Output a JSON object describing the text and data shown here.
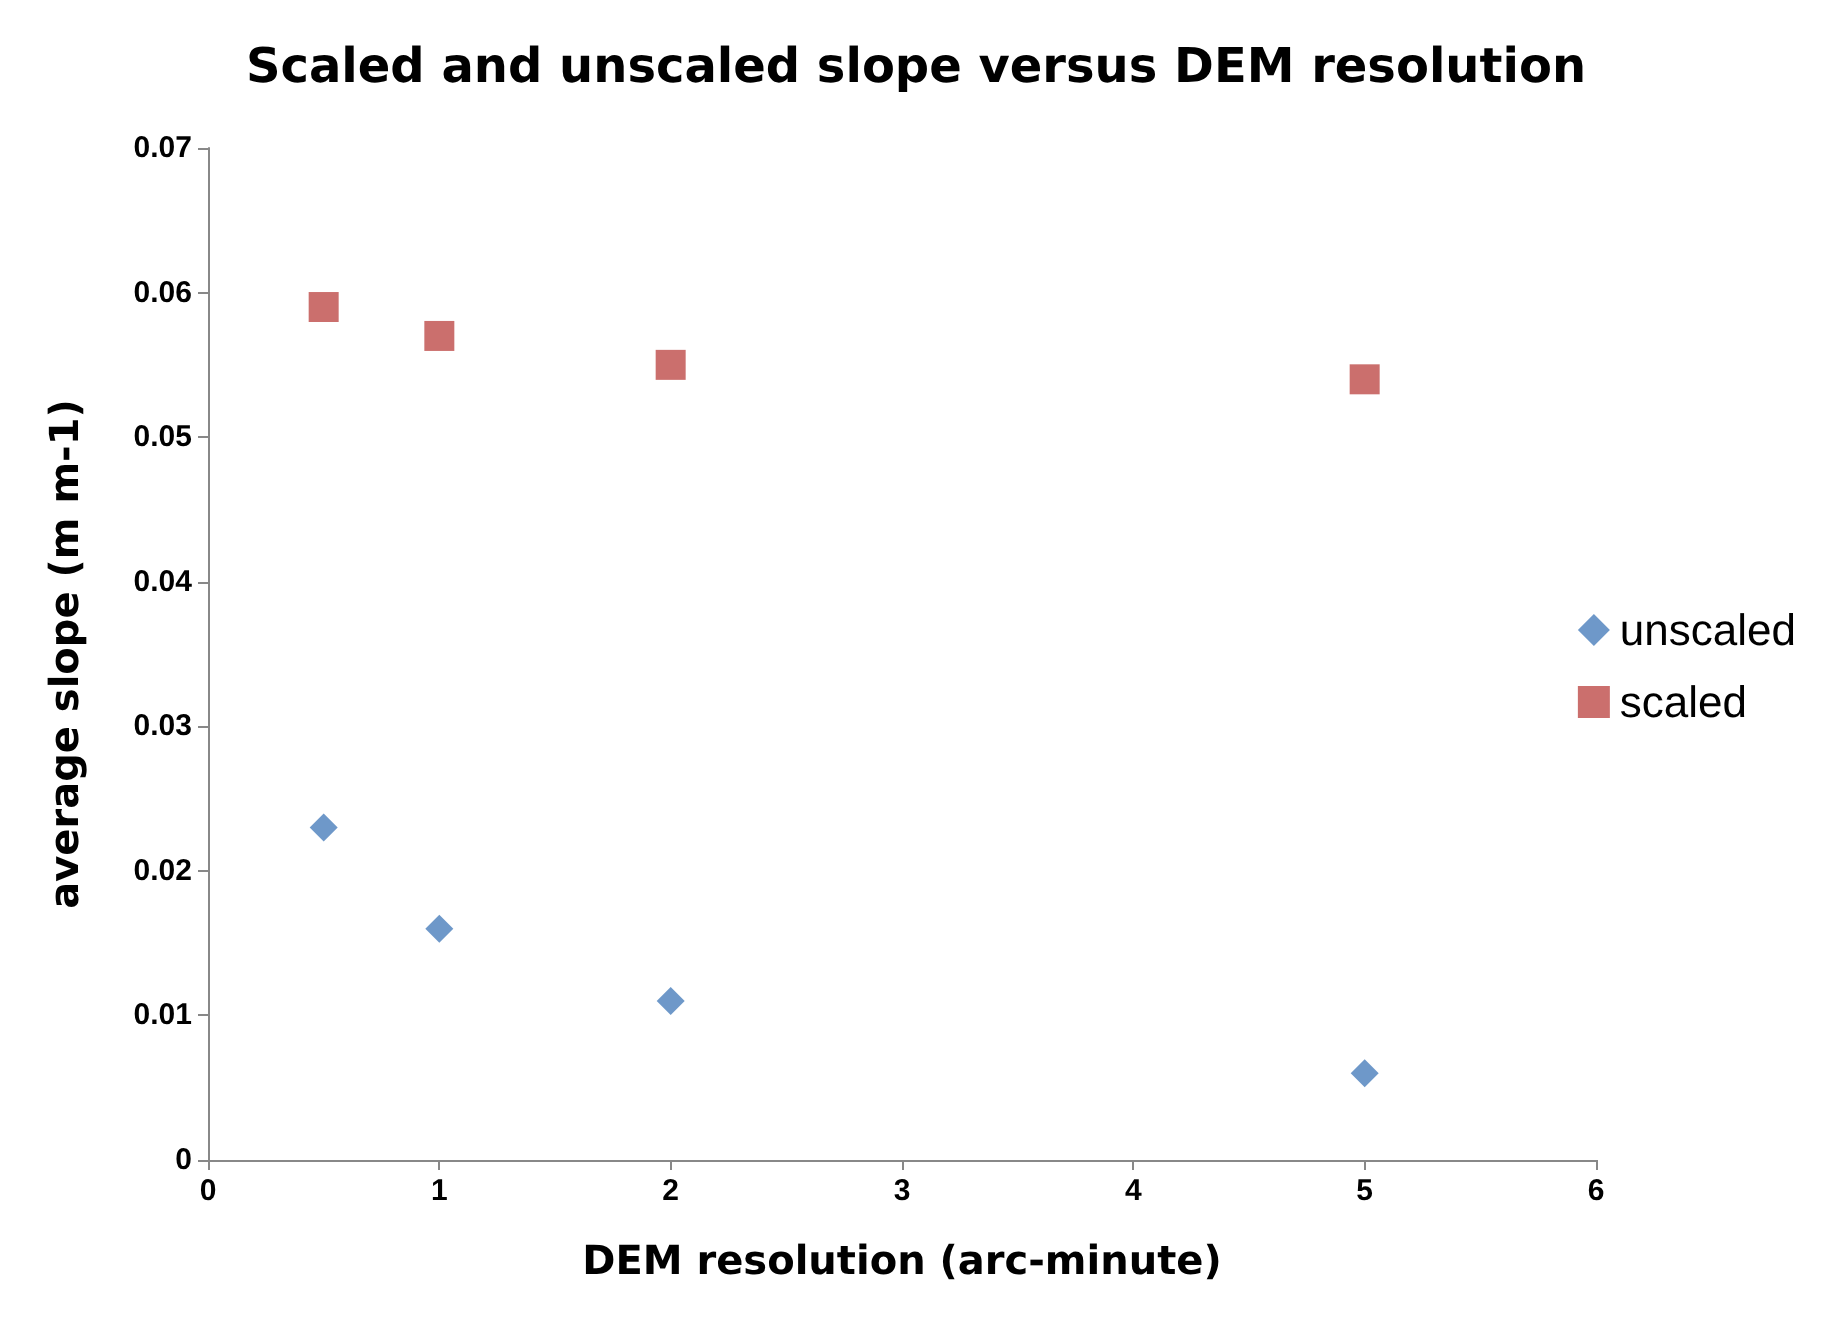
{
  "chart_data": {
    "type": "scatter",
    "title": "Scaled and unscaled slope versus DEM resolution",
    "xlabel": "DEM resolution (arc-minute)",
    "ylabel": "average slope (m m-1)",
    "x": [
      0.5,
      1,
      2,
      5
    ],
    "series": [
      {
        "name": "unscaled",
        "color": "#4a7ebb",
        "marker": "diamond",
        "values": [
          0.023,
          0.016,
          0.011,
          0.006
        ]
      },
      {
        "name": "scaled",
        "color": "#be4b48",
        "marker": "square",
        "values": [
          0.059,
          0.057,
          0.055,
          0.054
        ]
      }
    ],
    "xlim": [
      0,
      6
    ],
    "xticks": [
      0,
      1,
      2,
      3,
      4,
      5,
      6
    ],
    "ylim": [
      0,
      0.07
    ],
    "yticks": [
      0,
      0.01,
      0.02,
      0.03,
      0.04,
      0.05,
      0.06,
      0.07
    ],
    "grid": false,
    "legend": "right"
  }
}
